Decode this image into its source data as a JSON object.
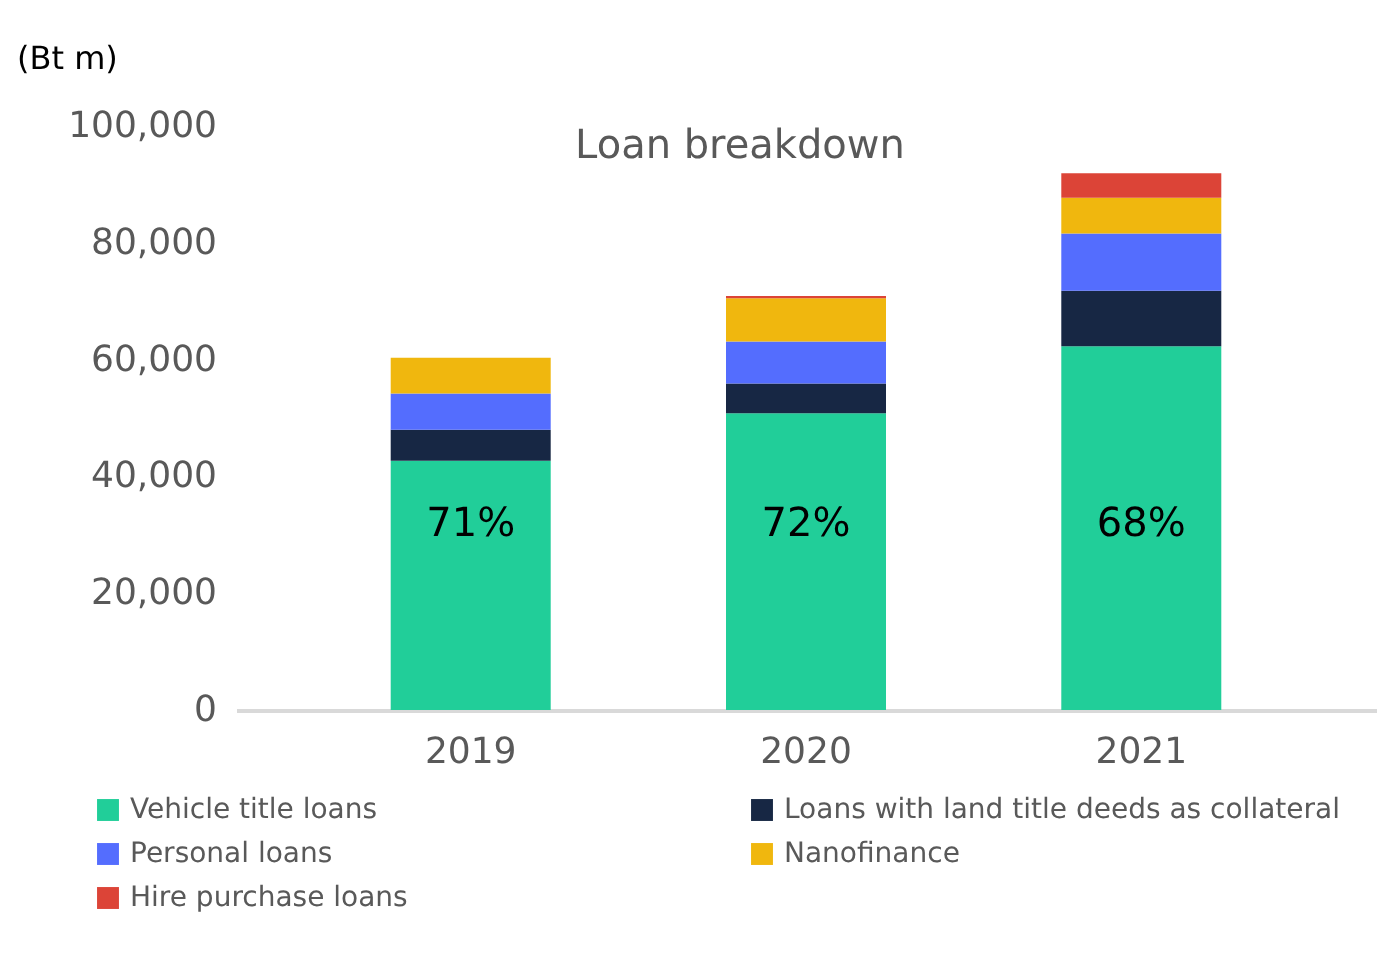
{
  "chart_data": {
    "type": "bar",
    "title": "Loan breakdown",
    "ylabel": "(Bt m)",
    "categories": [
      "2019",
      "2020",
      "2021"
    ],
    "stacked": true,
    "ylim": [
      0,
      100000
    ],
    "yticks": [
      0,
      {
        "value": 20000,
        "label": "20,000"
      },
      {
        "value": 40000,
        "label": "40,000"
      },
      {
        "value": 60000,
        "label": "60,000"
      },
      {
        "value": 80000,
        "label": "80,000"
      },
      {
        "value": 100000,
        "label": "100,000"
      }
    ],
    "grid": false,
    "legend": "bottom",
    "annotations": [
      "71%",
      "72%",
      "68%"
    ],
    "series": [
      {
        "name": "Vehicle title loans",
        "color": "#21ce99",
        "values": [
          42700,
          50800,
          62300
        ]
      },
      {
        "name": "Loans with land title deeds as collateral",
        "color": "#172744",
        "values": [
          5300,
          5100,
          9500
        ]
      },
      {
        "name": "Personal loans",
        "color": "#546dfe",
        "values": [
          6200,
          7200,
          9800
        ]
      },
      {
        "name": "Nanofinance",
        "color": "#f0b70e",
        "values": [
          6100,
          7400,
          6100
        ]
      },
      {
        "name": "Hire purchase loans",
        "color": "#dc4437",
        "values": [
          null,
          400,
          4200
        ]
      }
    ]
  }
}
